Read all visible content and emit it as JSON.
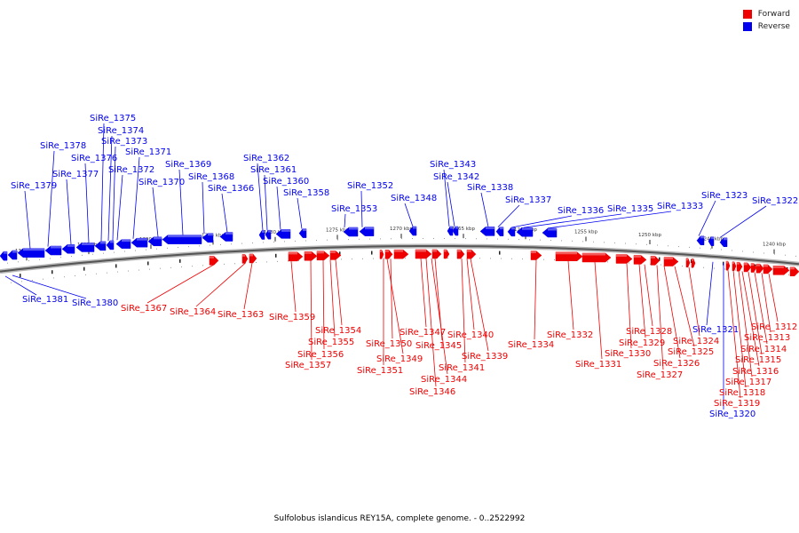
{
  "legend": {
    "forward": {
      "label": "Forward",
      "color": "#ee0000"
    },
    "reverse": {
      "label": "Reverse",
      "color": "#0000ee"
    }
  },
  "caption": "Sulfolobus islandicus REY15A, complete genome. - 0..2522992",
  "ticks": [
    "1300 kbp",
    "1295 kbp",
    "1290 kbp",
    "1285 kbp",
    "1280 kbp",
    "1275 kbp",
    "1270 kbp",
    "1265 kbp",
    "1260 kbp",
    "1255 kbp",
    "1250 kbp",
    "1245 kbp",
    "1240 kbp"
  ],
  "reverse_genes": [
    "SiRe_1379",
    "SiRe_1378",
    "SiRe_1377",
    "SiRe_1376",
    "SiRe_1375",
    "SiRe_1374",
    "SiRe_1373",
    "SiRe_1372",
    "SiRe_1371",
    "SiRe_1370",
    "SiRe_1369",
    "SiRe_1368",
    "SiRe_1366",
    "SiRe_1362",
    "SiRe_1361",
    "SiRe_1360",
    "SiRe_1358",
    "SiRe_1352",
    "SiRe_1353",
    "SiRe_1348",
    "SiRe_1343",
    "SiRe_1342",
    "SiRe_1338",
    "SiRe_1337",
    "SiRe_1336",
    "SiRe_1335",
    "SiRe_1333",
    "SiRe_1323",
    "SiRe_1322",
    "SiRe_1381",
    "SiRe_1380",
    "SiRe_1321",
    "SiRe_1320"
  ],
  "forward_genes": [
    "SiRe_1367",
    "SiRe_1364",
    "SiRe_1363",
    "SiRe_1359",
    "SiRe_1354",
    "SiRe_1355",
    "SiRe_1356",
    "SiRe_1357",
    "SiRe_1350",
    "SiRe_1349",
    "SiRe_1351",
    "SiRe_1347",
    "SiRe_1345",
    "SiRe_1344",
    "SiRe_1346",
    "SiRe_1340",
    "SiRe_1341",
    "SiRe_1339",
    "SiRe_1334",
    "SiRe_1332",
    "SiRe_1331",
    "SiRe_1328",
    "SiRe_1329",
    "SiRe_1330",
    "SiRe_1327",
    "SiRe_1326",
    "SiRe_1325",
    "SiRe_1324",
    "SiRe_1312",
    "SiRe_1313",
    "SiRe_1314",
    "SiRe_1315",
    "SiRe_1316",
    "SiRe_1317",
    "SiRe_1318",
    "SiRe_1319"
  ]
}
